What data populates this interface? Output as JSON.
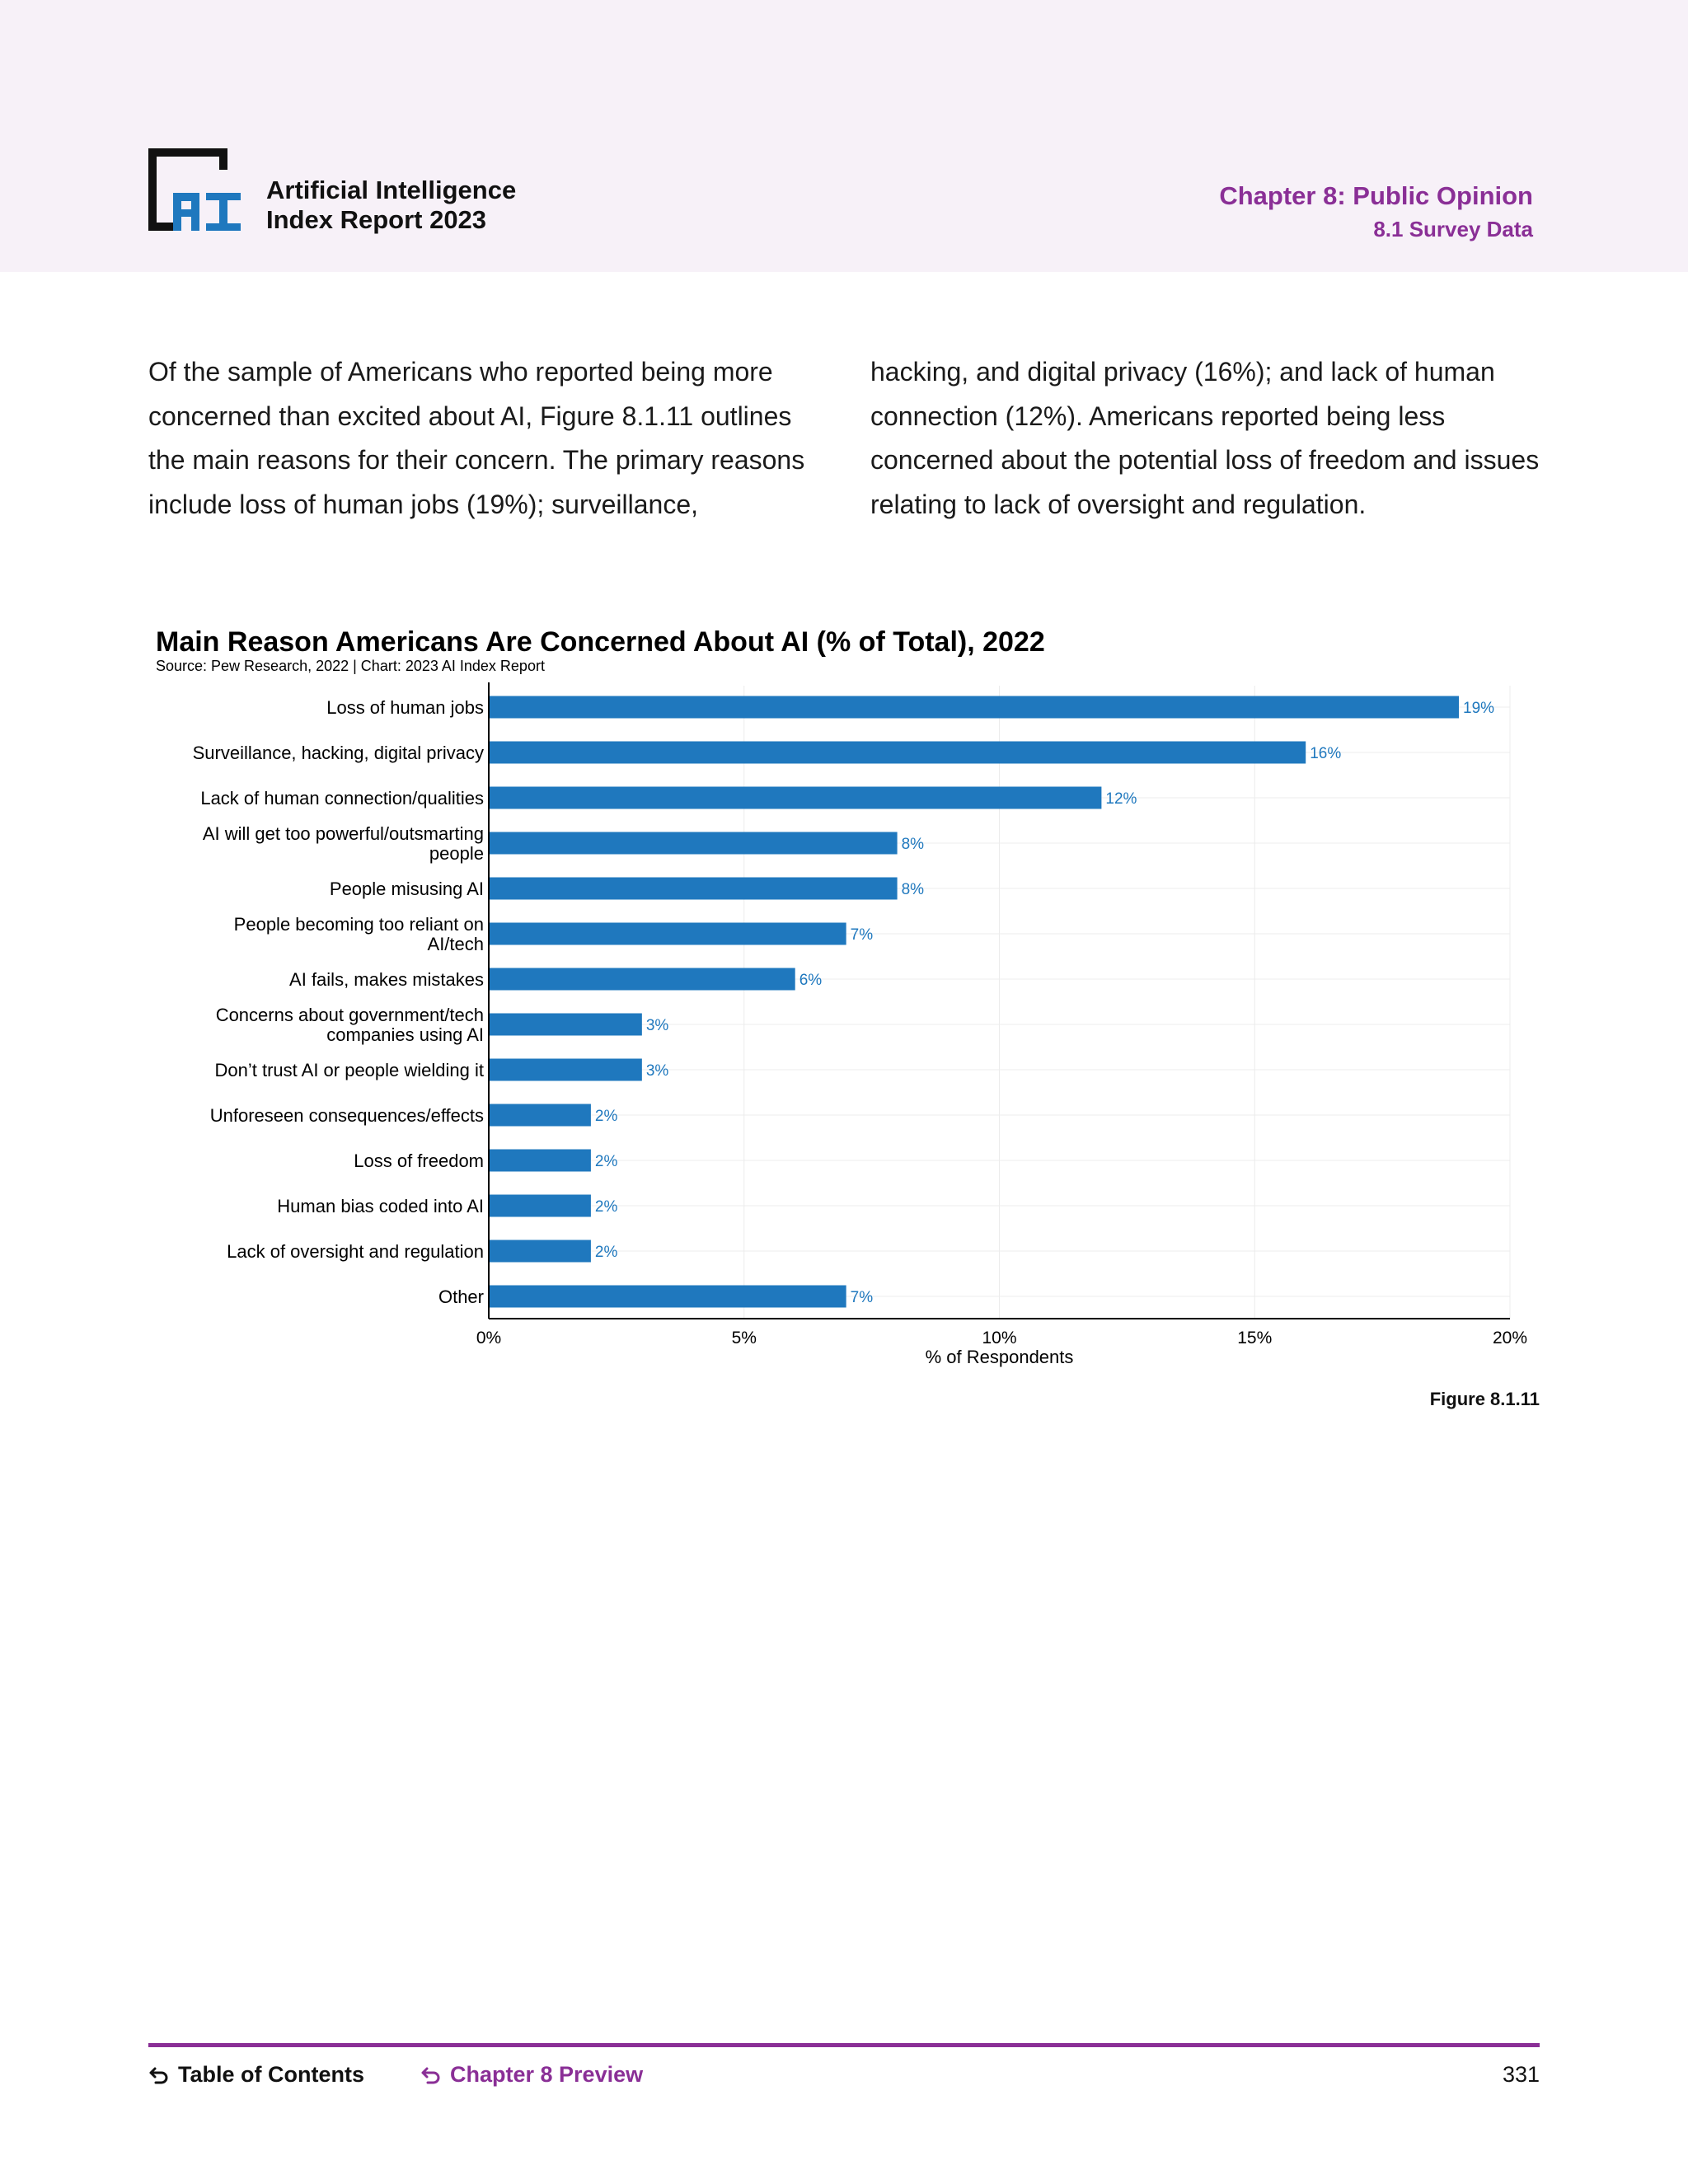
{
  "header": {
    "report_title_line1": "Artificial Intelligence",
    "report_title_line2": "Index Report 2023",
    "chapter_title": "Chapter 8: Public Opinion",
    "chapter_section": "8.1 Survey Data",
    "logo_icon": "ai-index-logo",
    "logo_text": "AI"
  },
  "intro": {
    "left_text": "Of the sample of Americans who reported being more concerned than excited about AI, Figure 8.1.11 outlines the main reasons for their concern. The primary reasons include loss of human jobs (19%); surveillance,",
    "right_text": "hacking, and digital privacy (16%); and lack of human connection (12%). Americans reported being less concerned about the potential loss of freedom and issues relating to lack of oversight and regulation."
  },
  "chart_data": {
    "type": "bar",
    "orientation": "horizontal",
    "title": "Main Reason Americans Are Concerned About AI (% of Total), 2022",
    "source": "Source: Pew Research, 2022 | Chart: 2023 AI Index Report",
    "categories": [
      [
        "Loss of human jobs"
      ],
      [
        "Surveillance, hacking, digital privacy"
      ],
      [
        "Lack of human connection/qualities"
      ],
      [
        "AI will get too powerful/outsmarting",
        "people"
      ],
      [
        "People misusing AI"
      ],
      [
        "People becoming too reliant on",
        "AI/tech"
      ],
      [
        "AI fails, makes mistakes"
      ],
      [
        "Concerns about government/tech",
        "companies using AI"
      ],
      [
        "Don’t trust AI or people wielding it"
      ],
      [
        "Unforeseen consequences/effects"
      ],
      [
        "Loss of freedom"
      ],
      [
        "Human bias coded into AI"
      ],
      [
        "Lack of oversight and regulation"
      ],
      [
        "Other"
      ]
    ],
    "values": [
      19,
      16,
      12,
      8,
      8,
      7,
      6,
      3,
      3,
      2,
      2,
      2,
      2,
      7
    ],
    "value_labels": [
      "19%",
      "16%",
      "12%",
      "8%",
      "8%",
      "7%",
      "6%",
      "3%",
      "3%",
      "2%",
      "2%",
      "2%",
      "2%",
      "7%"
    ],
    "xlim": [
      0,
      20
    ],
    "xticks": [
      0,
      5,
      10,
      15,
      20
    ],
    "xtick_labels": [
      "0%",
      "5%",
      "10%",
      "15%",
      "20%"
    ],
    "xlabel": "% of Respondents",
    "ylabel": "",
    "grid": true,
    "bar_color": "#1f78be",
    "label_color": "#1f78be"
  },
  "figure_label": "Figure 8.1.11",
  "footer": {
    "toc_label": "Table of Contents",
    "preview_label": "Chapter 8 Preview",
    "page_number": "331",
    "back_icon": "return-arrow-icon",
    "accent_color": "#8a2f96"
  }
}
